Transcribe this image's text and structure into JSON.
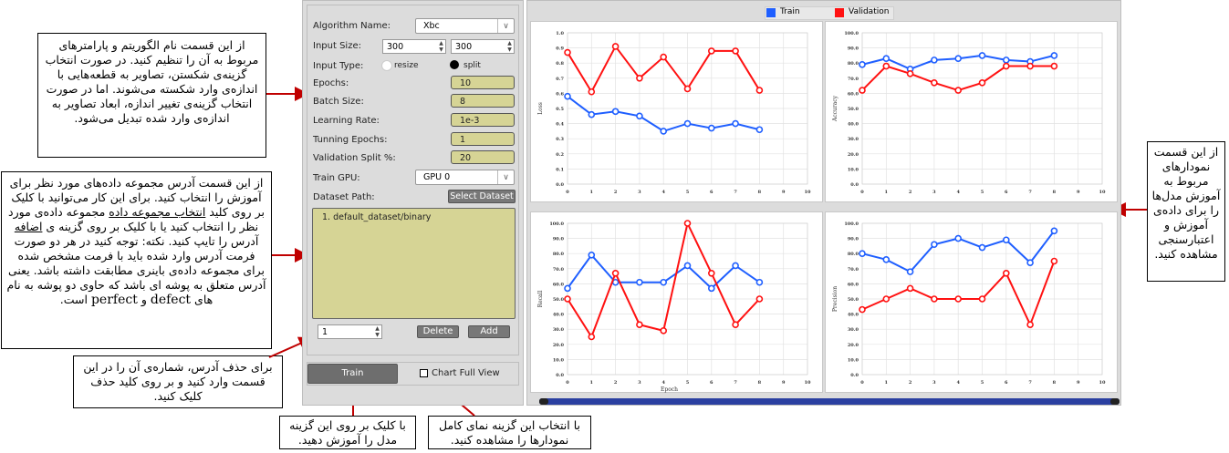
{
  "annotations": {
    "params": "از این قسمت نام الگوریتم و پارامترهای مربوط به آن را تنظیم کنید. در صورت انتخاب گزینه‌ی شکستن، تصاویر به قطعه‌هایی با اندازه‌ی وارد شکسته می‌شوند. اما در صورت انتخاب گزینه‌ی تغییر اندازه، ابعاد تصاویر به اندازه‌ی وارد شده تبدیل می‌شود.",
    "dataset_1": "از این قسمت آدرس مجموعه داده‌های مورد نظر برای آموزش را انتخاب کنید. برای این کار می‌توانید با کلیک بر روی کلید",
    "dataset_link1": "انتخاب مجموعه داده",
    "dataset_2": "مجموعه داده‌ی مورد نظر را انتخاب کنید یا با کلیک بر روی گزینه ی",
    "dataset_link2": "اضافه",
    "dataset_3": "آدرس را تایپ کنید. نکته: توجه کنید در هر دو صورت فرمت آدرس وارد شده باید با فرمت مشخص شده برای مجموعه داده‌ی باینری مطابقت داشته باشد. یعنی آدرس متعلق به پوشه ای باشد که حاوی دو پوشه به نام های",
    "dataset_defect": "defect",
    "dataset_and": "و",
    "dataset_perfect": "perfect",
    "dataset_end": "است.",
    "delete": "برای حذف آدرس، شماره‌ی آن را در این قسمت وارد کنید و بر روی کلید حذف کلیک کنید.",
    "train": "با کلیک بر روی این گزینه مدل را آموزش دهید.",
    "fullview": "با انتخاب این گزینه نمای کامل نمودارها را مشاهده کنید.",
    "charts": "از این قسمت نمودارهای مربوط به آموزش مدل‌ها را برای داده‌ی آموزش و اعتبارسنجی مشاهده کنید."
  },
  "form": {
    "algorithm_label": "Algorithm Name:",
    "algorithm_value": "Xbc",
    "input_size_label": "Input Size:",
    "input_w": "300",
    "input_h": "300",
    "input_type_label": "Input Type:",
    "resize_label": "resize",
    "split_label": "split",
    "epochs_label": "Epochs:",
    "epochs_value": "10",
    "batch_label": "Batch Size:",
    "batch_value": "8",
    "lr_label": "Learning Rate:",
    "lr_value": "1e-3",
    "tuning_label": "Tunning Epochs:",
    "tuning_value": "1",
    "valsplit_label": "Validation Split %:",
    "valsplit_value": "20",
    "gpu_label": "Train GPU:",
    "gpu_value": "GPU 0",
    "dataset_label": "Dataset Path:",
    "select_dataset": "Select Dataset",
    "dataset_items": [
      "1. default_dataset/binary"
    ],
    "index_value": "1",
    "delete_label": "Delete",
    "add_label": "Add",
    "train_label": "Train",
    "fullview_label": "Chart Full View"
  },
  "legend": {
    "train": "Train",
    "validation": "Validation",
    "train_color": "#1f5fff",
    "val_color": "#ff1111"
  },
  "chart_data": [
    {
      "type": "line",
      "ylabel": "Loss",
      "xlabel": "",
      "ylim": [
        0,
        1.0
      ],
      "yticks": [
        "0.0",
        "0.1",
        "0.2",
        "0.3",
        "0.4",
        "0.5",
        "0.6",
        "0.7",
        "0.8",
        "0.9",
        "1.0"
      ],
      "x": [
        0,
        1,
        2,
        3,
        4,
        5,
        6,
        7,
        8
      ],
      "xlim": [
        0,
        10
      ],
      "series": [
        {
          "name": "Train",
          "values": [
            0.58,
            0.46,
            0.48,
            0.45,
            0.35,
            0.4,
            0.37,
            0.4,
            0.36
          ]
        },
        {
          "name": "Validation",
          "values": [
            0.87,
            0.61,
            0.91,
            0.7,
            0.84,
            0.63,
            0.88,
            0.88,
            0.62
          ]
        }
      ]
    },
    {
      "type": "line",
      "ylabel": "Accuracy",
      "xlabel": "",
      "ylim": [
        0,
        100
      ],
      "yticks": [
        "0.0",
        "10.0",
        "20.0",
        "30.0",
        "40.0",
        "50.0",
        "60.0",
        "70.0",
        "80.0",
        "90.0",
        "100.0"
      ],
      "x": [
        0,
        1,
        2,
        3,
        4,
        5,
        6,
        7,
        8
      ],
      "xlim": [
        0,
        10
      ],
      "series": [
        {
          "name": "Train",
          "values": [
            79,
            83,
            76,
            82,
            83,
            85,
            82,
            81,
            85
          ]
        },
        {
          "name": "Validation",
          "values": [
            62,
            78,
            73,
            67,
            62,
            67,
            78,
            78,
            78
          ]
        }
      ]
    },
    {
      "type": "line",
      "ylabel": "Recall",
      "xlabel": "Epoch",
      "ylim": [
        0,
        100
      ],
      "yticks": [
        "0.0",
        "10.0",
        "20.0",
        "30.0",
        "40.0",
        "50.0",
        "60.0",
        "70.0",
        "80.0",
        "90.0",
        "100.0"
      ],
      "x": [
        0,
        1,
        2,
        3,
        4,
        5,
        6,
        7,
        8
      ],
      "xlim": [
        0,
        10
      ],
      "series": [
        {
          "name": "Train",
          "values": [
            57,
            79,
            61,
            61,
            61,
            72,
            57,
            72,
            61
          ]
        },
        {
          "name": "Validation",
          "values": [
            50,
            25,
            67,
            33,
            29,
            100,
            67,
            33,
            50
          ]
        }
      ]
    },
    {
      "type": "line",
      "ylabel": "Precision",
      "xlabel": "",
      "ylim": [
        0,
        100
      ],
      "yticks": [
        "0.0",
        "10.0",
        "20.0",
        "30.0",
        "40.0",
        "50.0",
        "60.0",
        "70.0",
        "80.0",
        "90.0",
        "100.0"
      ],
      "x": [
        0,
        1,
        2,
        3,
        4,
        5,
        6,
        7,
        8
      ],
      "xlim": [
        0,
        10
      ],
      "series": [
        {
          "name": "Train",
          "values": [
            80,
            76,
            68,
            86,
            90,
            84,
            89,
            74,
            95
          ]
        },
        {
          "name": "Validation",
          "values": [
            43,
            50,
            57,
            50,
            50,
            50,
            67,
            33,
            75
          ]
        }
      ]
    }
  ],
  "xticks": [
    "0",
    "1",
    "2",
    "3",
    "4",
    "5",
    "6",
    "7",
    "8",
    "9",
    "10"
  ]
}
